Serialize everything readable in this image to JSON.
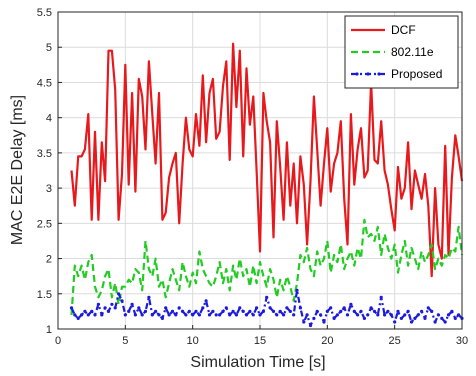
{
  "chart_data": {
    "type": "line",
    "title": "",
    "xlabel": "Simulation Time [s]",
    "ylabel": "MAC E2E Delay [ms]",
    "xlim": [
      0,
      30
    ],
    "ylim": [
      1,
      5.5
    ],
    "xticks": [
      "0",
      "5",
      "10",
      "15",
      "20",
      "25",
      "30"
    ],
    "yticks": [
      "1",
      "1.5",
      "2",
      "2.5",
      "3",
      "3.5",
      "4",
      "4.5",
      "5",
      "5.5"
    ],
    "grid": true,
    "legend_position": "top-right",
    "x": [
      1.0,
      1.25,
      1.5,
      1.75,
      2.0,
      2.25,
      2.5,
      2.75,
      3.0,
      3.25,
      3.5,
      3.75,
      4.0,
      4.25,
      4.5,
      4.75,
      5.0,
      5.25,
      5.5,
      5.75,
      6.0,
      6.25,
      6.5,
      6.75,
      7.0,
      7.25,
      7.5,
      7.75,
      8.0,
      8.25,
      8.5,
      8.75,
      9.0,
      9.25,
      9.5,
      9.75,
      10.0,
      10.25,
      10.5,
      10.75,
      11.0,
      11.25,
      11.5,
      11.75,
      12.0,
      12.25,
      12.5,
      12.75,
      13.0,
      13.25,
      13.5,
      13.75,
      14.0,
      14.25,
      14.5,
      14.75,
      15.0,
      15.25,
      15.5,
      15.75,
      16.0,
      16.25,
      16.5,
      16.75,
      17.0,
      17.25,
      17.5,
      17.75,
      18.0,
      18.25,
      18.5,
      18.75,
      19.0,
      19.25,
      19.5,
      19.75,
      20.0,
      20.25,
      20.5,
      20.75,
      21.0,
      21.25,
      21.5,
      21.75,
      22.0,
      22.25,
      22.5,
      22.75,
      23.0,
      23.25,
      23.5,
      23.75,
      24.0,
      24.25,
      24.5,
      24.75,
      25.0,
      25.25,
      25.5,
      25.75,
      26.0,
      26.25,
      26.5,
      26.75,
      27.0,
      27.25,
      27.5,
      27.75,
      28.0,
      28.25,
      28.5,
      28.75,
      29.0,
      29.25,
      29.5,
      29.75,
      30.0
    ],
    "series": [
      {
        "name": "DCF",
        "color": "#e8191c",
        "style": "solid",
        "values": [
          3.25,
          2.75,
          3.45,
          3.45,
          3.55,
          4.05,
          2.55,
          3.8,
          2.55,
          3.65,
          3.1,
          4.95,
          4.95,
          4.4,
          2.55,
          3.2,
          4.75,
          3.05,
          4.35,
          2.95,
          4.55,
          4.3,
          3.55,
          4.8,
          4.05,
          3.35,
          4.35,
          2.55,
          2.65,
          3.15,
          3.35,
          3.5,
          2.5,
          3.35,
          4.0,
          3.55,
          3.45,
          4.05,
          3.6,
          4.6,
          3.65,
          4.35,
          4.55,
          3.7,
          3.8,
          4.45,
          4.8,
          3.4,
          5.05,
          4.15,
          4.95,
          3.45,
          4.7,
          3.9,
          4.3,
          3.25,
          2.1,
          4.35,
          3.95,
          3.65,
          2.3,
          3.95,
          3.3,
          2.55,
          3.65,
          2.75,
          3.35,
          2.5,
          3.45,
          3.05,
          2.2,
          3.1,
          4.3,
          3.55,
          2.75,
          3.35,
          3.85,
          2.95,
          3.35,
          3.5,
          3.95,
          2.85,
          2.2,
          4.05,
          3.05,
          3.55,
          3.85,
          3.15,
          3.25,
          4.5,
          3.4,
          3.35,
          3.95,
          3.25,
          3.05,
          2.7,
          2.4,
          3.3,
          2.85,
          3.0,
          3.65,
          2.7,
          3.25,
          3.05,
          2.85,
          3.2,
          2.75,
          1.75,
          3.0,
          2.2,
          2.0,
          3.6,
          2.05,
          3.15,
          3.75,
          3.45,
          3.1
        ]
      },
      {
        "name": "802.11e",
        "color": "#22cc22",
        "style": "dashed",
        "values": [
          1.2,
          1.9,
          1.75,
          1.9,
          1.7,
          1.95,
          2.05,
          1.6,
          1.45,
          1.55,
          1.75,
          1.85,
          1.45,
          1.65,
          1.35,
          1.6,
          1.6,
          1.7,
          1.65,
          1.85,
          1.8,
          1.55,
          2.25,
          1.85,
          1.75,
          2.0,
          1.6,
          1.7,
          1.45,
          1.65,
          1.85,
          1.7,
          1.55,
          1.95,
          1.75,
          1.6,
          1.8,
          1.65,
          2.1,
          1.85,
          1.75,
          1.65,
          1.6,
          1.75,
          1.95,
          1.65,
          1.85,
          1.55,
          1.9,
          1.7,
          2.0,
          1.75,
          1.85,
          1.6,
          1.9,
          1.65,
          1.95,
          1.75,
          1.6,
          1.85,
          1.7,
          1.45,
          1.7,
          1.55,
          1.75,
          1.6,
          1.4,
          1.65,
          2.05,
          1.95,
          2.15,
          1.85,
          1.75,
          2.1,
          1.9,
          2.0,
          2.25,
          1.8,
          2.05,
          1.95,
          2.2,
          1.85,
          2.0,
          2.1,
          1.9,
          2.15,
          2.0,
          2.55,
          2.3,
          2.35,
          2.25,
          2.45,
          2.05,
          2.35,
          2.15,
          2.0,
          2.2,
          1.8,
          2.05,
          2.25,
          1.9,
          2.15,
          2.0,
          1.85,
          2.1,
          1.95,
          2.05,
          2.2,
          1.85,
          2.0,
          1.9,
          2.05,
          2.0,
          2.15,
          2.1,
          2.45,
          2.05
        ]
      },
      {
        "name": "Proposed",
        "color": "#1a1ae0",
        "style": "dashdot-marker",
        "values": [
          1.3,
          1.2,
          1.15,
          1.2,
          1.25,
          1.2,
          1.25,
          1.2,
          1.35,
          1.2,
          1.3,
          1.25,
          1.35,
          1.3,
          1.5,
          1.4,
          1.2,
          1.25,
          1.35,
          1.2,
          1.3,
          1.2,
          1.25,
          1.45,
          1.2,
          1.25,
          1.2,
          1.15,
          1.3,
          1.2,
          1.25,
          1.2,
          1.3,
          1.25,
          1.2,
          1.25,
          1.2,
          1.25,
          1.2,
          1.3,
          1.4,
          1.2,
          1.25,
          1.2,
          1.2,
          1.25,
          1.3,
          1.2,
          1.25,
          1.2,
          1.3,
          1.25,
          1.2,
          1.25,
          1.2,
          1.3,
          1.2,
          1.25,
          1.45,
          1.3,
          1.25,
          1.2,
          1.25,
          1.2,
          1.3,
          1.25,
          1.2,
          1.55,
          1.3,
          1.1,
          1.2,
          1.05,
          1.15,
          1.25,
          1.2,
          1.1,
          1.25,
          1.3,
          1.15,
          1.2,
          1.25,
          1.3,
          1.2,
          1.35,
          1.25,
          1.2,
          1.25,
          1.15,
          1.2,
          1.3,
          1.25,
          1.2,
          1.45,
          1.2,
          1.25,
          1.2,
          1.1,
          1.25,
          1.15,
          1.2,
          1.25,
          1.1,
          1.15,
          1.2,
          1.25,
          1.15,
          1.3,
          1.25,
          1.1,
          1.2,
          1.15,
          1.1,
          1.2,
          1.25,
          1.15,
          1.2,
          1.15
        ]
      }
    ]
  }
}
